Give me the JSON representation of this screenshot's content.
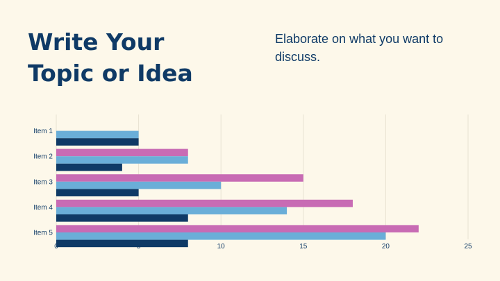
{
  "slide": {
    "title": "Write Your Topic or Idea",
    "subtitle": "Elaborate on what you want to discuss."
  },
  "colors": {
    "background": "#fdf8ea",
    "text": "#0f3a66",
    "grid": "#e8e2d2"
  },
  "chart_data": {
    "type": "bar",
    "orientation": "horizontal",
    "categories": [
      "Item 1",
      "Item 2",
      "Item 3",
      "Item 4",
      "Item 5"
    ],
    "series": [
      {
        "color": "#c86bb4",
        "values": [
          null,
          8,
          15,
          18,
          22
        ]
      },
      {
        "color": "#6aaed8",
        "values": [
          5,
          8,
          10,
          14,
          20
        ]
      },
      {
        "color": "#0f3a66",
        "values": [
          5,
          4,
          5,
          8,
          8
        ]
      }
    ],
    "xlim": [
      0,
      25
    ],
    "xticks": [
      0,
      5,
      10,
      15,
      20,
      25
    ],
    "grid": true,
    "legend": "none"
  }
}
